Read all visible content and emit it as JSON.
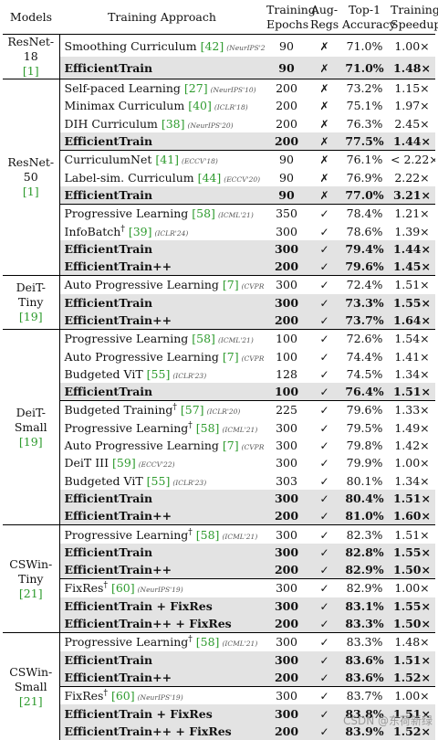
{
  "headers": {
    "models": "Models",
    "approach": "Training Approach",
    "epochs": [
      "Training",
      "Epochs"
    ],
    "aug": [
      "Aug-",
      "Regs"
    ],
    "acc": [
      "Top-1",
      "Accuracy"
    ],
    "speedup": [
      "Training",
      "Speedup"
    ]
  },
  "marks": {
    "cross": "✗",
    "check": "✓"
  },
  "groups": [
    {
      "model": "ResNet-18",
      "ref": "[1]",
      "rows": [
        {
          "name": "Smoothing Curriculum",
          "ref": "[42]",
          "venue": "(NeurIPS'20)",
          "epochs": "90",
          "aug": "cross",
          "acc": "71.0%",
          "speedup": "1.00×"
        },
        {
          "name": "EfficientTrain",
          "epochs": "90",
          "aug": "cross",
          "acc": "71.0%",
          "speedup": "1.48×",
          "hl": true
        }
      ]
    },
    {
      "model": "ResNet-50",
      "ref": "[1]",
      "rows": [
        {
          "name": "Self-paced Learning",
          "ref": "[27]",
          "venue": "(NeurIPS'10)",
          "epochs": "200",
          "aug": "cross",
          "acc": "73.2%",
          "speedup": "1.15×"
        },
        {
          "name": "Minimax Curriculum",
          "ref": "[40]",
          "venue": "(ICLR'18)",
          "epochs": "200",
          "aug": "cross",
          "acc": "75.1%",
          "speedup": "1.97×"
        },
        {
          "name": "DIH Curriculum",
          "ref": "[38]",
          "venue": "(NeurIPS'20)",
          "epochs": "200",
          "aug": "cross",
          "acc": "76.3%",
          "speedup": "2.45×"
        },
        {
          "name": "EfficientTrain",
          "epochs": "200",
          "aug": "cross",
          "acc": "77.5%",
          "speedup": "1.44×",
          "hl": true
        },
        {
          "name": "CurriculumNet",
          "ref": "[41]",
          "venue": "(ECCV'18)",
          "epochs": "90",
          "aug": "cross",
          "acc": "76.1%",
          "speedup": "< 2.22×",
          "sub": true
        },
        {
          "name": "Label-sim. Curriculum",
          "ref": "[44]",
          "venue": "(ECCV'20)",
          "epochs": "90",
          "aug": "cross",
          "acc": "76.9%",
          "speedup": "2.22×"
        },
        {
          "name": "EfficientTrain",
          "epochs": "90",
          "aug": "cross",
          "acc": "77.0%",
          "speedup": "3.21×",
          "hl": true
        },
        {
          "name": "Progressive Learning",
          "ref": "[58]",
          "venue": "(ICML'21)",
          "epochs": "350",
          "aug": "check",
          "acc": "78.4%",
          "speedup": "1.21×",
          "sub": true
        },
        {
          "name": "InfoBatch",
          "dagger": true,
          "ref": "[39]",
          "venue": "(ICLR'24)",
          "epochs": "300",
          "aug": "check",
          "acc": "78.6%",
          "speedup": "1.39×"
        },
        {
          "name": "EfficientTrain",
          "epochs": "300",
          "aug": "check",
          "acc": "79.4%",
          "speedup": "1.44×",
          "hl": true
        },
        {
          "name": "EfficientTrain++",
          "epochs": "200",
          "aug": "check",
          "acc": "79.6%",
          "speedup": "1.45×",
          "hl": true
        }
      ]
    },
    {
      "model": "DeiT-Tiny",
      "ref": "[19]",
      "rows": [
        {
          "name": "Auto Progressive Learning",
          "ref": "[7]",
          "venue": "(CVPR'22)",
          "epochs": "300",
          "aug": "check",
          "acc": "72.4%",
          "speedup": "1.51×"
        },
        {
          "name": "EfficientTrain",
          "epochs": "300",
          "aug": "check",
          "acc": "73.3%",
          "speedup": "1.55×",
          "hl": true
        },
        {
          "name": "EfficientTrain++",
          "epochs": "200",
          "aug": "check",
          "acc": "73.7%",
          "speedup": "1.64×",
          "hl": true
        }
      ]
    },
    {
      "model": "DeiT-Small",
      "ref": "[19]",
      "rows": [
        {
          "name": "Progressive Learning",
          "ref": "[58]",
          "venue": "(ICML'21)",
          "epochs": "100",
          "aug": "check",
          "acc": "72.6%",
          "speedup": "1.54×"
        },
        {
          "name": "Auto Progressive Learning",
          "ref": "[7]",
          "venue": "(CVPR'22)",
          "epochs": "100",
          "aug": "check",
          "acc": "74.4%",
          "speedup": "1.41×"
        },
        {
          "name": "Budgeted ViT",
          "ref": "[55]",
          "venue": "(ICLR'23)",
          "epochs": "128",
          "aug": "check",
          "acc": "74.5%",
          "speedup": "1.34×"
        },
        {
          "name": "EfficientTrain",
          "epochs": "100",
          "aug": "check",
          "acc": "76.4%",
          "speedup": "1.51×",
          "hl": true
        },
        {
          "name": "Budgeted Training",
          "dagger": true,
          "ref": "[57]",
          "venue": "(ICLR'20)",
          "epochs": "225",
          "aug": "check",
          "acc": "79.6%",
          "speedup": "1.33×",
          "sub": true
        },
        {
          "name": "Progressive Learning",
          "dagger": true,
          "ref": "[58]",
          "venue": "(ICML'21)",
          "epochs": "300",
          "aug": "check",
          "acc": "79.5%",
          "speedup": "1.49×"
        },
        {
          "name": "Auto Progressive Learning",
          "ref": "[7]",
          "venue": "(CVPR'22)",
          "epochs": "300",
          "aug": "check",
          "acc": "79.8%",
          "speedup": "1.42×"
        },
        {
          "name": "DeiT III",
          "ref": "[59]",
          "venue": "(ECCV'22)",
          "epochs": "300",
          "aug": "check",
          "acc": "79.9%",
          "speedup": "1.00×"
        },
        {
          "name": "Budgeted ViT",
          "ref": "[55]",
          "venue": "(ICLR'23)",
          "epochs": "303",
          "aug": "check",
          "acc": "80.1%",
          "speedup": "1.34×"
        },
        {
          "name": "EfficientTrain",
          "epochs": "300",
          "aug": "check",
          "acc": "80.4%",
          "speedup": "1.51×",
          "hl": true
        },
        {
          "name": "EfficientTrain++",
          "epochs": "200",
          "aug": "check",
          "acc": "81.0%",
          "speedup": "1.60×",
          "hl": true
        }
      ]
    },
    {
      "model": "CSWin-Tiny",
      "ref": "[21]",
      "rows": [
        {
          "name": "Progressive Learning",
          "dagger": true,
          "ref": "[58]",
          "venue": "(ICML'21)",
          "epochs": "300",
          "aug": "check",
          "acc": "82.3%",
          "speedup": "1.51×"
        },
        {
          "name": "EfficientTrain",
          "epochs": "300",
          "aug": "check",
          "acc": "82.8%",
          "speedup": "1.55×",
          "hl": true
        },
        {
          "name": "EfficientTrain++",
          "epochs": "200",
          "aug": "check",
          "acc": "82.9%",
          "speedup": "1.50×",
          "hl": true
        },
        {
          "name": "FixRes",
          "dagger": true,
          "ref": "[60]",
          "venue": "(NeurIPS'19)",
          "epochs": "300",
          "aug": "check",
          "acc": "82.9%",
          "speedup": "1.00×",
          "sub": true
        },
        {
          "name": "EfficientTrain + FixRes",
          "epochs": "300",
          "aug": "check",
          "acc": "83.1%",
          "speedup": "1.55×",
          "hl": true
        },
        {
          "name": "EfficientTrain++ + FixRes",
          "epochs": "200",
          "aug": "check",
          "acc": "83.3%",
          "speedup": "1.50×",
          "hl": true
        }
      ]
    },
    {
      "model": "CSWin-Small",
      "ref": "[21]",
      "rows": [
        {
          "name": "Progressive Learning",
          "dagger": true,
          "ref": "[58]",
          "venue": "(ICML'21)",
          "epochs": "300",
          "aug": "check",
          "acc": "83.3%",
          "speedup": "1.48×"
        },
        {
          "name": "EfficientTrain",
          "epochs": "300",
          "aug": "check",
          "acc": "83.6%",
          "speedup": "1.51×",
          "hl": true
        },
        {
          "name": "EfficientTrain++",
          "epochs": "200",
          "aug": "check",
          "acc": "83.6%",
          "speedup": "1.52×",
          "hl": true
        },
        {
          "name": "FixRes",
          "dagger": true,
          "ref": "[60]",
          "venue": "(NeurIPS'19)",
          "epochs": "300",
          "aug": "check",
          "acc": "83.7%",
          "speedup": "1.00×",
          "sub": true
        },
        {
          "name": "EfficientTrain + FixRes",
          "epochs": "300",
          "aug": "check",
          "acc": "83.8%",
          "speedup": "1.51×",
          "hl": true
        },
        {
          "name": "EfficientTrain++ + FixRes",
          "epochs": "200",
          "aug": "check",
          "acc": "83.9%",
          "speedup": "1.52×",
          "hl": true
        }
      ]
    }
  ],
  "watermark": "CSDN @东荷新绿"
}
